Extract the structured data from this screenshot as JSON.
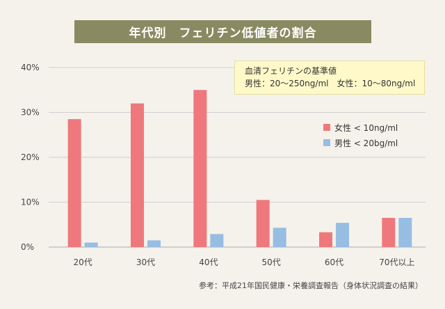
{
  "title": "年代別　フェリチン低値者の割合",
  "note": {
    "heading": "血清フェリチンの基準値",
    "detail": "男性：20〜250ng/ml　女性：10〜80ng/ml"
  },
  "source": "参考：平成21年国民健康・栄養調査報告（身体状況調査の結果）",
  "colors": {
    "female": "#ef787c",
    "male": "#97bde2",
    "grid": "#cfcfcf",
    "axis": "#aaaaaa"
  },
  "chart_data": {
    "type": "bar",
    "title": "年代別　フェリチン低値者の割合",
    "categories": [
      "20代",
      "30代",
      "40代",
      "50代",
      "60代",
      "70代以上"
    ],
    "series": [
      {
        "name": "女性 < 10ng/ml",
        "values": [
          28.5,
          32.0,
          35.0,
          10.5,
          3.3,
          6.5
        ]
      },
      {
        "name": "男性 < 20bg/ml",
        "values": [
          1.0,
          1.5,
          2.9,
          4.3,
          5.4,
          6.5
        ]
      }
    ],
    "yticks": [
      "0%",
      "10%",
      "20%",
      "30%",
      "40%"
    ],
    "ylim": [
      0,
      40
    ],
    "grid": true,
    "legend_position": "right"
  }
}
